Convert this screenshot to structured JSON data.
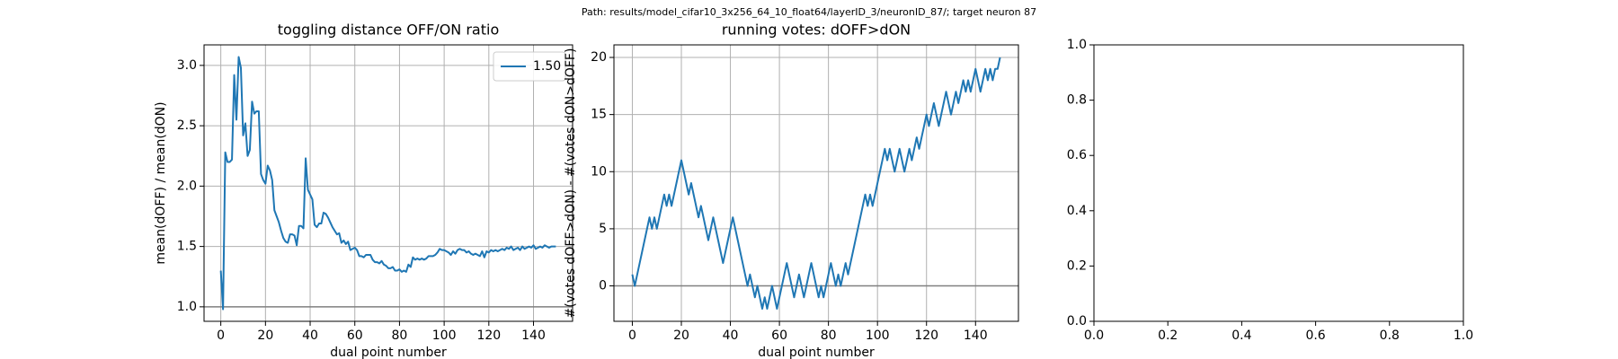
{
  "suptitle": "Path: results/model_cifar10_3x256_64_10_float64/layerID_3/neuronID_87/; target neuron 87",
  "chart_data": [
    {
      "type": "line",
      "title": "toggling distance OFF/ON ratio",
      "xlabel": "dual point number",
      "ylabel": "mean(dOFF) / mean(dON)",
      "x": [
        0,
        1,
        2,
        3,
        4,
        5,
        6,
        7,
        8,
        9,
        10,
        11,
        12,
        13,
        14,
        15,
        16,
        17,
        18,
        19,
        20,
        21,
        22,
        23,
        24,
        25,
        26,
        27,
        28,
        29,
        30,
        31,
        32,
        33,
        34,
        35,
        36,
        37,
        38,
        39,
        40,
        41,
        42,
        43,
        44,
        45,
        46,
        47,
        48,
        49,
        50,
        51,
        52,
        53,
        54,
        55,
        56,
        57,
        58,
        59,
        60,
        61,
        62,
        63,
        64,
        65,
        66,
        67,
        68,
        69,
        70,
        71,
        72,
        73,
        74,
        75,
        76,
        77,
        78,
        79,
        80,
        81,
        82,
        83,
        84,
        85,
        86,
        87,
        88,
        89,
        90,
        91,
        92,
        93,
        94,
        95,
        96,
        97,
        98,
        99,
        100,
        101,
        102,
        103,
        104,
        105,
        106,
        107,
        108,
        109,
        110,
        111,
        112,
        113,
        114,
        115,
        116,
        117,
        118,
        119,
        120,
        121,
        122,
        123,
        124,
        125,
        126,
        127,
        128,
        129,
        130,
        131,
        132,
        133,
        134,
        135,
        136,
        137,
        138,
        139,
        140,
        141,
        142,
        143,
        144,
        145,
        146,
        147,
        148,
        149,
        150
      ],
      "series": [
        {
          "name": "1.50",
          "color": "#1f77b4",
          "values": [
            1.3,
            0.98,
            2.28,
            2.2,
            2.2,
            2.22,
            2.92,
            2.55,
            3.07,
            2.98,
            2.42,
            2.52,
            2.25,
            2.3,
            2.7,
            2.6,
            2.62,
            2.62,
            2.1,
            2.05,
            2.02,
            2.17,
            2.13,
            2.05,
            1.8,
            1.75,
            1.7,
            1.63,
            1.57,
            1.54,
            1.53,
            1.6,
            1.6,
            1.59,
            1.51,
            1.67,
            1.67,
            1.65,
            2.23,
            1.97,
            1.93,
            1.89,
            1.68,
            1.66,
            1.69,
            1.69,
            1.78,
            1.77,
            1.74,
            1.7,
            1.66,
            1.63,
            1.6,
            1.61,
            1.53,
            1.55,
            1.52,
            1.54,
            1.47,
            1.48,
            1.49,
            1.47,
            1.42,
            1.42,
            1.41,
            1.43,
            1.43,
            1.43,
            1.39,
            1.37,
            1.37,
            1.36,
            1.38,
            1.35,
            1.34,
            1.32,
            1.32,
            1.33,
            1.3,
            1.3,
            1.31,
            1.29,
            1.3,
            1.29,
            1.35,
            1.33,
            1.41,
            1.39,
            1.4,
            1.39,
            1.4,
            1.39,
            1.4,
            1.42,
            1.42,
            1.42,
            1.43,
            1.45,
            1.48,
            1.47,
            1.47,
            1.46,
            1.45,
            1.43,
            1.46,
            1.44,
            1.47,
            1.48,
            1.47,
            1.47,
            1.45,
            1.46,
            1.44,
            1.43,
            1.44,
            1.43,
            1.42,
            1.46,
            1.41,
            1.46,
            1.45,
            1.47,
            1.46,
            1.47,
            1.46,
            1.47,
            1.48,
            1.47,
            1.49,
            1.48,
            1.5,
            1.47,
            1.48,
            1.49,
            1.47,
            1.5,
            1.48,
            1.49,
            1.5,
            1.49,
            1.51,
            1.48,
            1.49,
            1.5,
            1.49,
            1.51,
            1.5,
            1.49,
            1.5,
            1.5,
            1.5
          ]
        }
      ],
      "reference_line": {
        "y": 1.0,
        "color": "#808080"
      },
      "xlim": [
        -7.5,
        157.5
      ],
      "xticks": [
        0,
        20,
        40,
        60,
        80,
        100,
        120,
        140
      ],
      "ylim": [
        0.88,
        3.17
      ],
      "yticks": [
        {
          "value": 1.0,
          "label": "1.0"
        },
        {
          "value": 1.5,
          "label": "1.5"
        },
        {
          "value": 2.0,
          "label": "2.0"
        },
        {
          "value": 2.5,
          "label": "2.5"
        },
        {
          "value": 3.0,
          "label": "3.0"
        }
      ],
      "grid": true,
      "legend": "upper right"
    },
    {
      "type": "line",
      "title": "running votes: dOFF>dON",
      "xlabel": "dual point number",
      "ylabel": "#(votes dOFF>dON) - #(votes dON>dOFF)",
      "x": [
        0,
        1,
        2,
        3,
        4,
        5,
        6,
        7,
        8,
        9,
        10,
        11,
        12,
        13,
        14,
        15,
        16,
        17,
        18,
        19,
        20,
        21,
        22,
        23,
        24,
        25,
        26,
        27,
        28,
        29,
        30,
        31,
        32,
        33,
        34,
        35,
        36,
        37,
        38,
        39,
        40,
        41,
        42,
        43,
        44,
        45,
        46,
        47,
        48,
        49,
        50,
        51,
        52,
        53,
        54,
        55,
        56,
        57,
        58,
        59,
        60,
        61,
        62,
        63,
        64,
        65,
        66,
        67,
        68,
        69,
        70,
        71,
        72,
        73,
        74,
        75,
        76,
        77,
        78,
        79,
        80,
        81,
        82,
        83,
        84,
        85,
        86,
        87,
        88,
        89,
        90,
        91,
        92,
        93,
        94,
        95,
        96,
        97,
        98,
        99,
        100,
        101,
        102,
        103,
        104,
        105,
        106,
        107,
        108,
        109,
        110,
        111,
        112,
        113,
        114,
        115,
        116,
        117,
        118,
        119,
        120,
        121,
        122,
        123,
        124,
        125,
        126,
        127,
        128,
        129,
        130,
        131,
        132,
        133,
        134,
        135,
        136,
        137,
        138,
        139,
        140,
        141,
        142,
        143,
        144,
        145,
        146,
        147,
        148,
        149,
        150
      ],
      "series": [
        {
          "color": "#1f77b4",
          "values": [
            1,
            0,
            1,
            2,
            3,
            4,
            5,
            6,
            5,
            6,
            5,
            6,
            7,
            8,
            7,
            8,
            7,
            8,
            9,
            10,
            11,
            10,
            9,
            8,
            9,
            8,
            7,
            6,
            7,
            6,
            5,
            4,
            5,
            6,
            5,
            4,
            3,
            2,
            3,
            4,
            5,
            6,
            5,
            4,
            3,
            2,
            1,
            0,
            1,
            0,
            -1,
            0,
            -1,
            -2,
            -1,
            -2,
            -1,
            0,
            -1,
            -2,
            -1,
            0,
            1,
            2,
            1,
            0,
            -1,
            0,
            1,
            0,
            -1,
            0,
            1,
            2,
            1,
            0,
            -1,
            0,
            -1,
            0,
            1,
            2,
            1,
            0,
            1,
            0,
            1,
            2,
            1,
            2,
            3,
            4,
            5,
            6,
            7,
            8,
            7,
            8,
            7,
            8,
            9,
            10,
            11,
            12,
            11,
            12,
            11,
            10,
            11,
            12,
            11,
            10,
            11,
            12,
            11,
            12,
            13,
            12,
            13,
            14,
            15,
            14,
            15,
            16,
            15,
            14,
            15,
            16,
            17,
            16,
            15,
            16,
            17,
            16,
            17,
            18,
            17,
            18,
            17,
            18,
            19,
            18,
            17,
            18,
            19,
            18,
            19,
            18,
            19,
            19,
            20
          ]
        }
      ],
      "reference_line": {
        "y": 0,
        "color": "#808080"
      },
      "xlim": [
        -7.5,
        157.5
      ],
      "xticks": [
        0,
        20,
        40,
        60,
        80,
        100,
        120,
        140
      ],
      "ylim": [
        -3.1,
        21.1
      ],
      "yticks": [
        0,
        5,
        10,
        15,
        20
      ],
      "grid": true
    },
    {
      "type": "empty",
      "xlim": [
        0,
        1
      ],
      "xticks": [
        {
          "value": 0,
          "label": "0.0"
        },
        {
          "value": 0.2,
          "label": "0.2"
        },
        {
          "value": 0.4,
          "label": "0.4"
        },
        {
          "value": 0.6,
          "label": "0.6"
        },
        {
          "value": 0.8,
          "label": "0.8"
        },
        {
          "value": 1,
          "label": "1.0"
        }
      ],
      "ylim": [
        0,
        1
      ],
      "yticks": [
        {
          "value": 0,
          "label": "0.0"
        },
        {
          "value": 0.2,
          "label": "0.2"
        },
        {
          "value": 0.4,
          "label": "0.4"
        },
        {
          "value": 0.6,
          "label": "0.6"
        },
        {
          "value": 0.8,
          "label": "0.8"
        },
        {
          "value": 1,
          "label": "1.0"
        }
      ],
      "grid": false
    }
  ]
}
